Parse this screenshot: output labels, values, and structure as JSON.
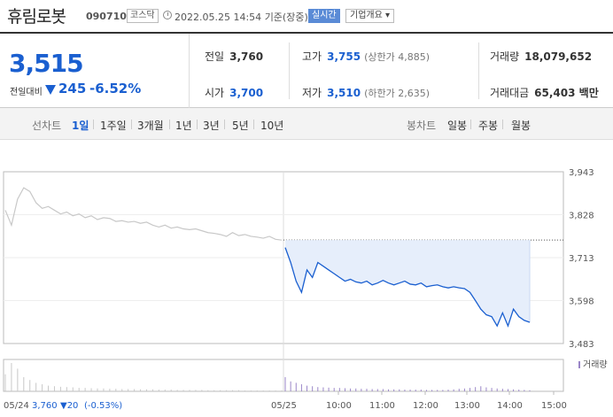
{
  "header": {
    "stock_name": "휴림로봇",
    "stock_code": "090710",
    "market": "코스닥",
    "datetime": "2022.05.25 14:54",
    "basis": "기준(장중)",
    "realtime_label": "실시간",
    "company_info_label": "기업개요",
    "company_info_caret": "▾"
  },
  "price": {
    "current": "3,515",
    "change_label": "전일대비",
    "change": "245",
    "rate": "-6.52%",
    "direction": "down"
  },
  "stats": {
    "prev_close_label": "전일",
    "prev_close": "3,760",
    "high_label": "고가",
    "high": "3,755",
    "upper_limit": "(상한가 4,885)",
    "volume_label": "거래량",
    "volume": "18,079,652",
    "open_label": "시가",
    "open": "3,700",
    "low_label": "저가",
    "low": "3,510",
    "lower_limit": "(하한가 2,635)",
    "amount_label": "거래대금",
    "amount": "65,403 백만"
  },
  "periods": {
    "line_chart_label": "선차트",
    "line_items": [
      "1일",
      "1주일",
      "3개월",
      "1년",
      "3년",
      "5년",
      "10년"
    ],
    "active": "1일",
    "candle_chart_label": "봉차트",
    "candle_items": [
      "일봉",
      "주봉",
      "월봉"
    ]
  },
  "colors": {
    "down": "#1a5fd0",
    "prev_line": "#c8c8c8",
    "area_fill": "#e6eefb"
  },
  "chart_data": {
    "type": "line",
    "y_ticks": [
      "3,943",
      "3,828",
      "3,713",
      "3,598",
      "3,483"
    ],
    "ylim": [
      3483,
      3943
    ],
    "x_ticks": [
      "05/24",
      "05/25",
      "10:00",
      "11:00",
      "12:00",
      "13:00",
      "14:00",
      "15:00"
    ],
    "volume_label": "거래량",
    "previous_day_caption": "05/24",
    "previous_day_close": "3,760",
    "previous_day_change": "▼20",
    "previous_day_rate": "(-0.53%)",
    "reference_line": 3760,
    "series": [
      {
        "day": "05/24",
        "values": [
          3840,
          3800,
          3870,
          3900,
          3890,
          3860,
          3845,
          3850,
          3840,
          3830,
          3835,
          3825,
          3830,
          3820,
          3825,
          3815,
          3820,
          3818,
          3810,
          3812,
          3808,
          3810,
          3805,
          3808,
          3800,
          3795,
          3800,
          3792,
          3795,
          3790,
          3788,
          3790,
          3785,
          3780,
          3778,
          3775,
          3770,
          3780,
          3772,
          3775,
          3770,
          3768,
          3765,
          3770,
          3762,
          3760
        ]
      },
      {
        "day": "05/25",
        "values": [
          3740,
          3700,
          3650,
          3620,
          3680,
          3660,
          3700,
          3690,
          3680,
          3670,
          3660,
          3650,
          3655,
          3648,
          3645,
          3650,
          3640,
          3645,
          3652,
          3645,
          3640,
          3645,
          3650,
          3642,
          3640,
          3645,
          3635,
          3638,
          3640,
          3635,
          3632,
          3635,
          3632,
          3630,
          3620,
          3598,
          3575,
          3560,
          3555,
          3530,
          3565,
          3530,
          3575,
          3555,
          3545,
          3540
        ]
      }
    ],
    "volume_prev": [
      60,
      100,
      80,
      50,
      40,
      30,
      25,
      20,
      18,
      16,
      15,
      14,
      12,
      12,
      11,
      10,
      10,
      9,
      9,
      8,
      8,
      8,
      7,
      7,
      7,
      6,
      6,
      6,
      5,
      5,
      5,
      5,
      5,
      4,
      4,
      4,
      4,
      4,
      4,
      3,
      3,
      3,
      3,
      3,
      3,
      3
    ],
    "volume_today": [
      50,
      35,
      30,
      25,
      20,
      18,
      15,
      14,
      13,
      12,
      12,
      11,
      10,
      10,
      9,
      9,
      8,
      8,
      8,
      7,
      7,
      7,
      6,
      6,
      6,
      6,
      5,
      5,
      5,
      5,
      6,
      7,
      9,
      10,
      12,
      15,
      18,
      14,
      12,
      10,
      9,
      8,
      7,
      6,
      5,
      4
    ]
  }
}
